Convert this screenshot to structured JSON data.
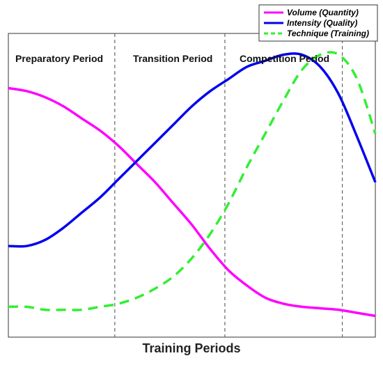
{
  "chart_data": {
    "type": "line",
    "title": "",
    "xlabel": "Training Periods",
    "ylabel": "",
    "x_range": [
      0,
      100
    ],
    "y_range": [
      0,
      100
    ],
    "grid": false,
    "legend_position": "top-right",
    "period_labels": [
      "Preparatory Period",
      "Transition Period",
      "Competition Period"
    ],
    "period_boundaries": [
      29,
      59,
      91
    ],
    "series": [
      {
        "name": "Volume (Quantity)",
        "color": "#ff00ff",
        "style": "solid",
        "x": [
          0,
          5,
          10,
          15,
          20,
          25,
          30,
          35,
          40,
          45,
          50,
          55,
          60,
          65,
          70,
          75,
          80,
          85,
          90,
          95,
          100
        ],
        "y": [
          82,
          81,
          79,
          76,
          72,
          68,
          63,
          57,
          51,
          44,
          37,
          29,
          22,
          17,
          13,
          11,
          10,
          9.5,
          9,
          8,
          7
        ]
      },
      {
        "name": "Intensity (Quality)",
        "color": "#0000ee",
        "style": "solid",
        "x": [
          0,
          5,
          10,
          15,
          20,
          25,
          30,
          35,
          40,
          45,
          50,
          55,
          60,
          65,
          70,
          75,
          80,
          85,
          90,
          95,
          100
        ],
        "y": [
          30,
          30,
          32,
          36,
          41,
          46,
          52,
          58,
          64,
          70,
          76,
          81,
          85,
          89,
          91,
          93,
          93,
          89,
          80,
          66,
          51
        ]
      },
      {
        "name": "Technique (Training)",
        "color": "#33ee33",
        "style": "dashed",
        "x": [
          0,
          5,
          10,
          15,
          20,
          25,
          30,
          35,
          40,
          45,
          50,
          55,
          60,
          65,
          70,
          75,
          80,
          85,
          90,
          95,
          100
        ],
        "y": [
          10,
          10,
          9,
          9,
          9,
          10,
          11,
          13,
          16,
          20,
          26,
          34,
          44,
          56,
          67,
          78,
          88,
          93,
          93,
          85,
          67
        ]
      }
    ]
  }
}
